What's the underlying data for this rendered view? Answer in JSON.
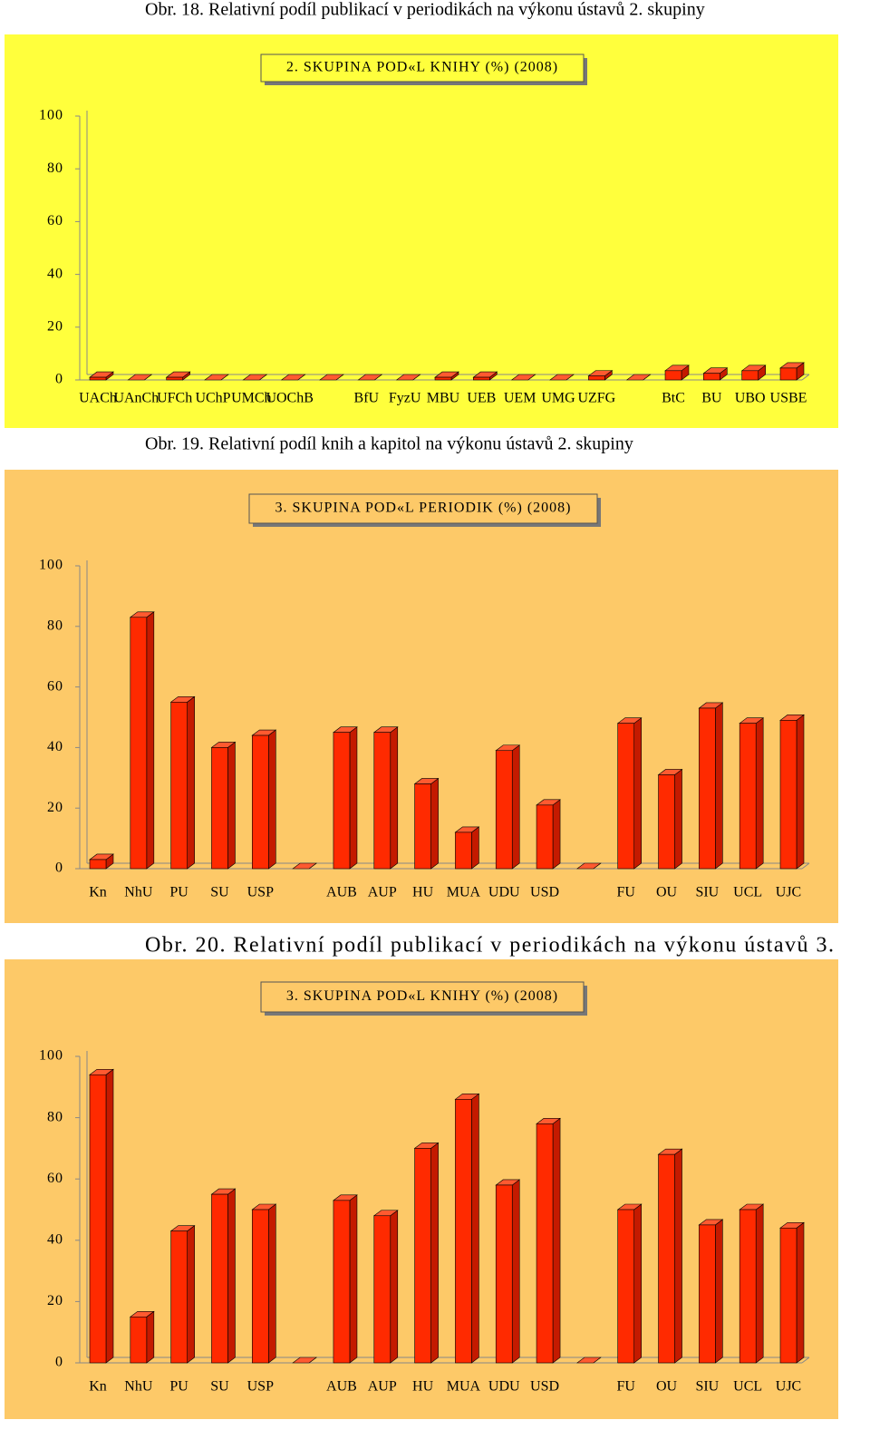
{
  "captions": [
    "Obr. 18. Relativní podíl publikací v periodikách na výkonu ústavů 2. skupiny",
    "Obr. 19. Relativní podíl knih a kapitol na výkonu ústavů 2. skupiny",
    "Obr. 20. Relativní podíl publikací v periodikách na výkonu ústavů 3."
  ],
  "chart_data": [
    {
      "type": "bar",
      "title": "2. SKUPINA POD«L KNIHY (%) (2008)",
      "categories": [
        "UACh",
        "UAnCh",
        "UFCh",
        "UChP",
        "UMCh",
        "UOChB",
        null,
        "BfU",
        "FyzU",
        "MBU",
        "UEB",
        "UEM",
        "UMG",
        "UZFG",
        null,
        "BtC",
        "BU",
        "UBO",
        "USBE"
      ],
      "values": [
        1,
        0,
        1,
        0,
        0,
        0,
        0,
        0,
        0,
        1,
        1,
        0,
        0,
        1.5,
        0,
        3.5,
        2.5,
        3.5,
        4.5
      ],
      "color": "#ff2a00",
      "background": "#ffff3c",
      "ylim": [
        0,
        100
      ],
      "yticks": [
        0,
        20,
        40,
        60,
        80,
        100
      ]
    },
    {
      "type": "bar",
      "title": "3. SKUPINA POD«L PERIODIK (%) (2008)",
      "categories": [
        "Kn",
        "NhU",
        "PU",
        "SU",
        "USP",
        null,
        "AUB",
        "AUP",
        "HU",
        "MUA",
        "UDU",
        "USD",
        null,
        "FU",
        "OU",
        "SIU",
        "UCL",
        "UJC"
      ],
      "values": [
        3,
        83,
        55,
        40,
        44,
        0,
        45,
        45,
        28,
        12,
        39,
        21,
        0,
        48,
        31,
        53,
        48,
        49
      ],
      "color": "#ff2a00",
      "background": "#fdc968",
      "ylim": [
        0,
        100
      ],
      "yticks": [
        0,
        20,
        40,
        60,
        80,
        100
      ]
    },
    {
      "type": "bar",
      "title": "3. SKUPINA POD«L KNIHY (%) (2008)",
      "categories": [
        "Kn",
        "NhU",
        "PU",
        "SU",
        "USP",
        null,
        "AUB",
        "AUP",
        "HU",
        "MUA",
        "UDU",
        "USD",
        null,
        "FU",
        "OU",
        "SIU",
        "UCL",
        "UJC"
      ],
      "values": [
        94,
        15,
        43,
        55,
        50,
        0,
        53,
        48,
        70,
        86,
        58,
        78,
        0,
        50,
        68,
        45,
        50,
        44
      ],
      "color": "#ff2a00",
      "background": "#fdc968",
      "ylim": [
        0,
        100
      ],
      "yticks": [
        0,
        20,
        40,
        60,
        80,
        100
      ]
    }
  ]
}
